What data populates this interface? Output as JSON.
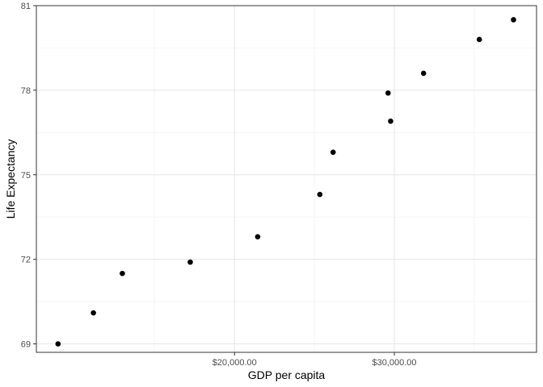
{
  "chart_data": {
    "type": "scatter",
    "title": "",
    "xlabel": "GDP per capita",
    "ylabel": "Life Expectancy",
    "xlim": [
      7600,
      38900
    ],
    "ylim": [
      68.7,
      81.0
    ],
    "x_ticks": [
      {
        "value": 20000,
        "label": "$20,000.00"
      },
      {
        "value": 30000,
        "label": "$30,000.00"
      }
    ],
    "x_minor_ticks": [
      15000,
      25000,
      35000
    ],
    "y_ticks": [
      {
        "value": 69,
        "label": "69"
      },
      {
        "value": 72,
        "label": "72"
      },
      {
        "value": 75,
        "label": "75"
      },
      {
        "value": 78,
        "label": "78"
      },
      {
        "value": 81,
        "label": "81"
      }
    ],
    "y_minor_ticks": [
      70.5,
      73.5,
      76.5,
      79.5
    ],
    "points": [
      {
        "x": 8955,
        "y": 69.0
      },
      {
        "x": 11170,
        "y": 70.1
      },
      {
        "x": 12980,
        "y": 71.5
      },
      {
        "x": 17230,
        "y": 71.9
      },
      {
        "x": 21450,
        "y": 72.8
      },
      {
        "x": 25340,
        "y": 74.3
      },
      {
        "x": 26170,
        "y": 75.8
      },
      {
        "x": 29610,
        "y": 77.9
      },
      {
        "x": 29770,
        "y": 76.9
      },
      {
        "x": 31830,
        "y": 78.6
      },
      {
        "x": 35320,
        "y": 79.8
      },
      {
        "x": 37460,
        "y": 80.5
      }
    ],
    "point_color": "#000000",
    "grid": true,
    "legend": "none"
  }
}
